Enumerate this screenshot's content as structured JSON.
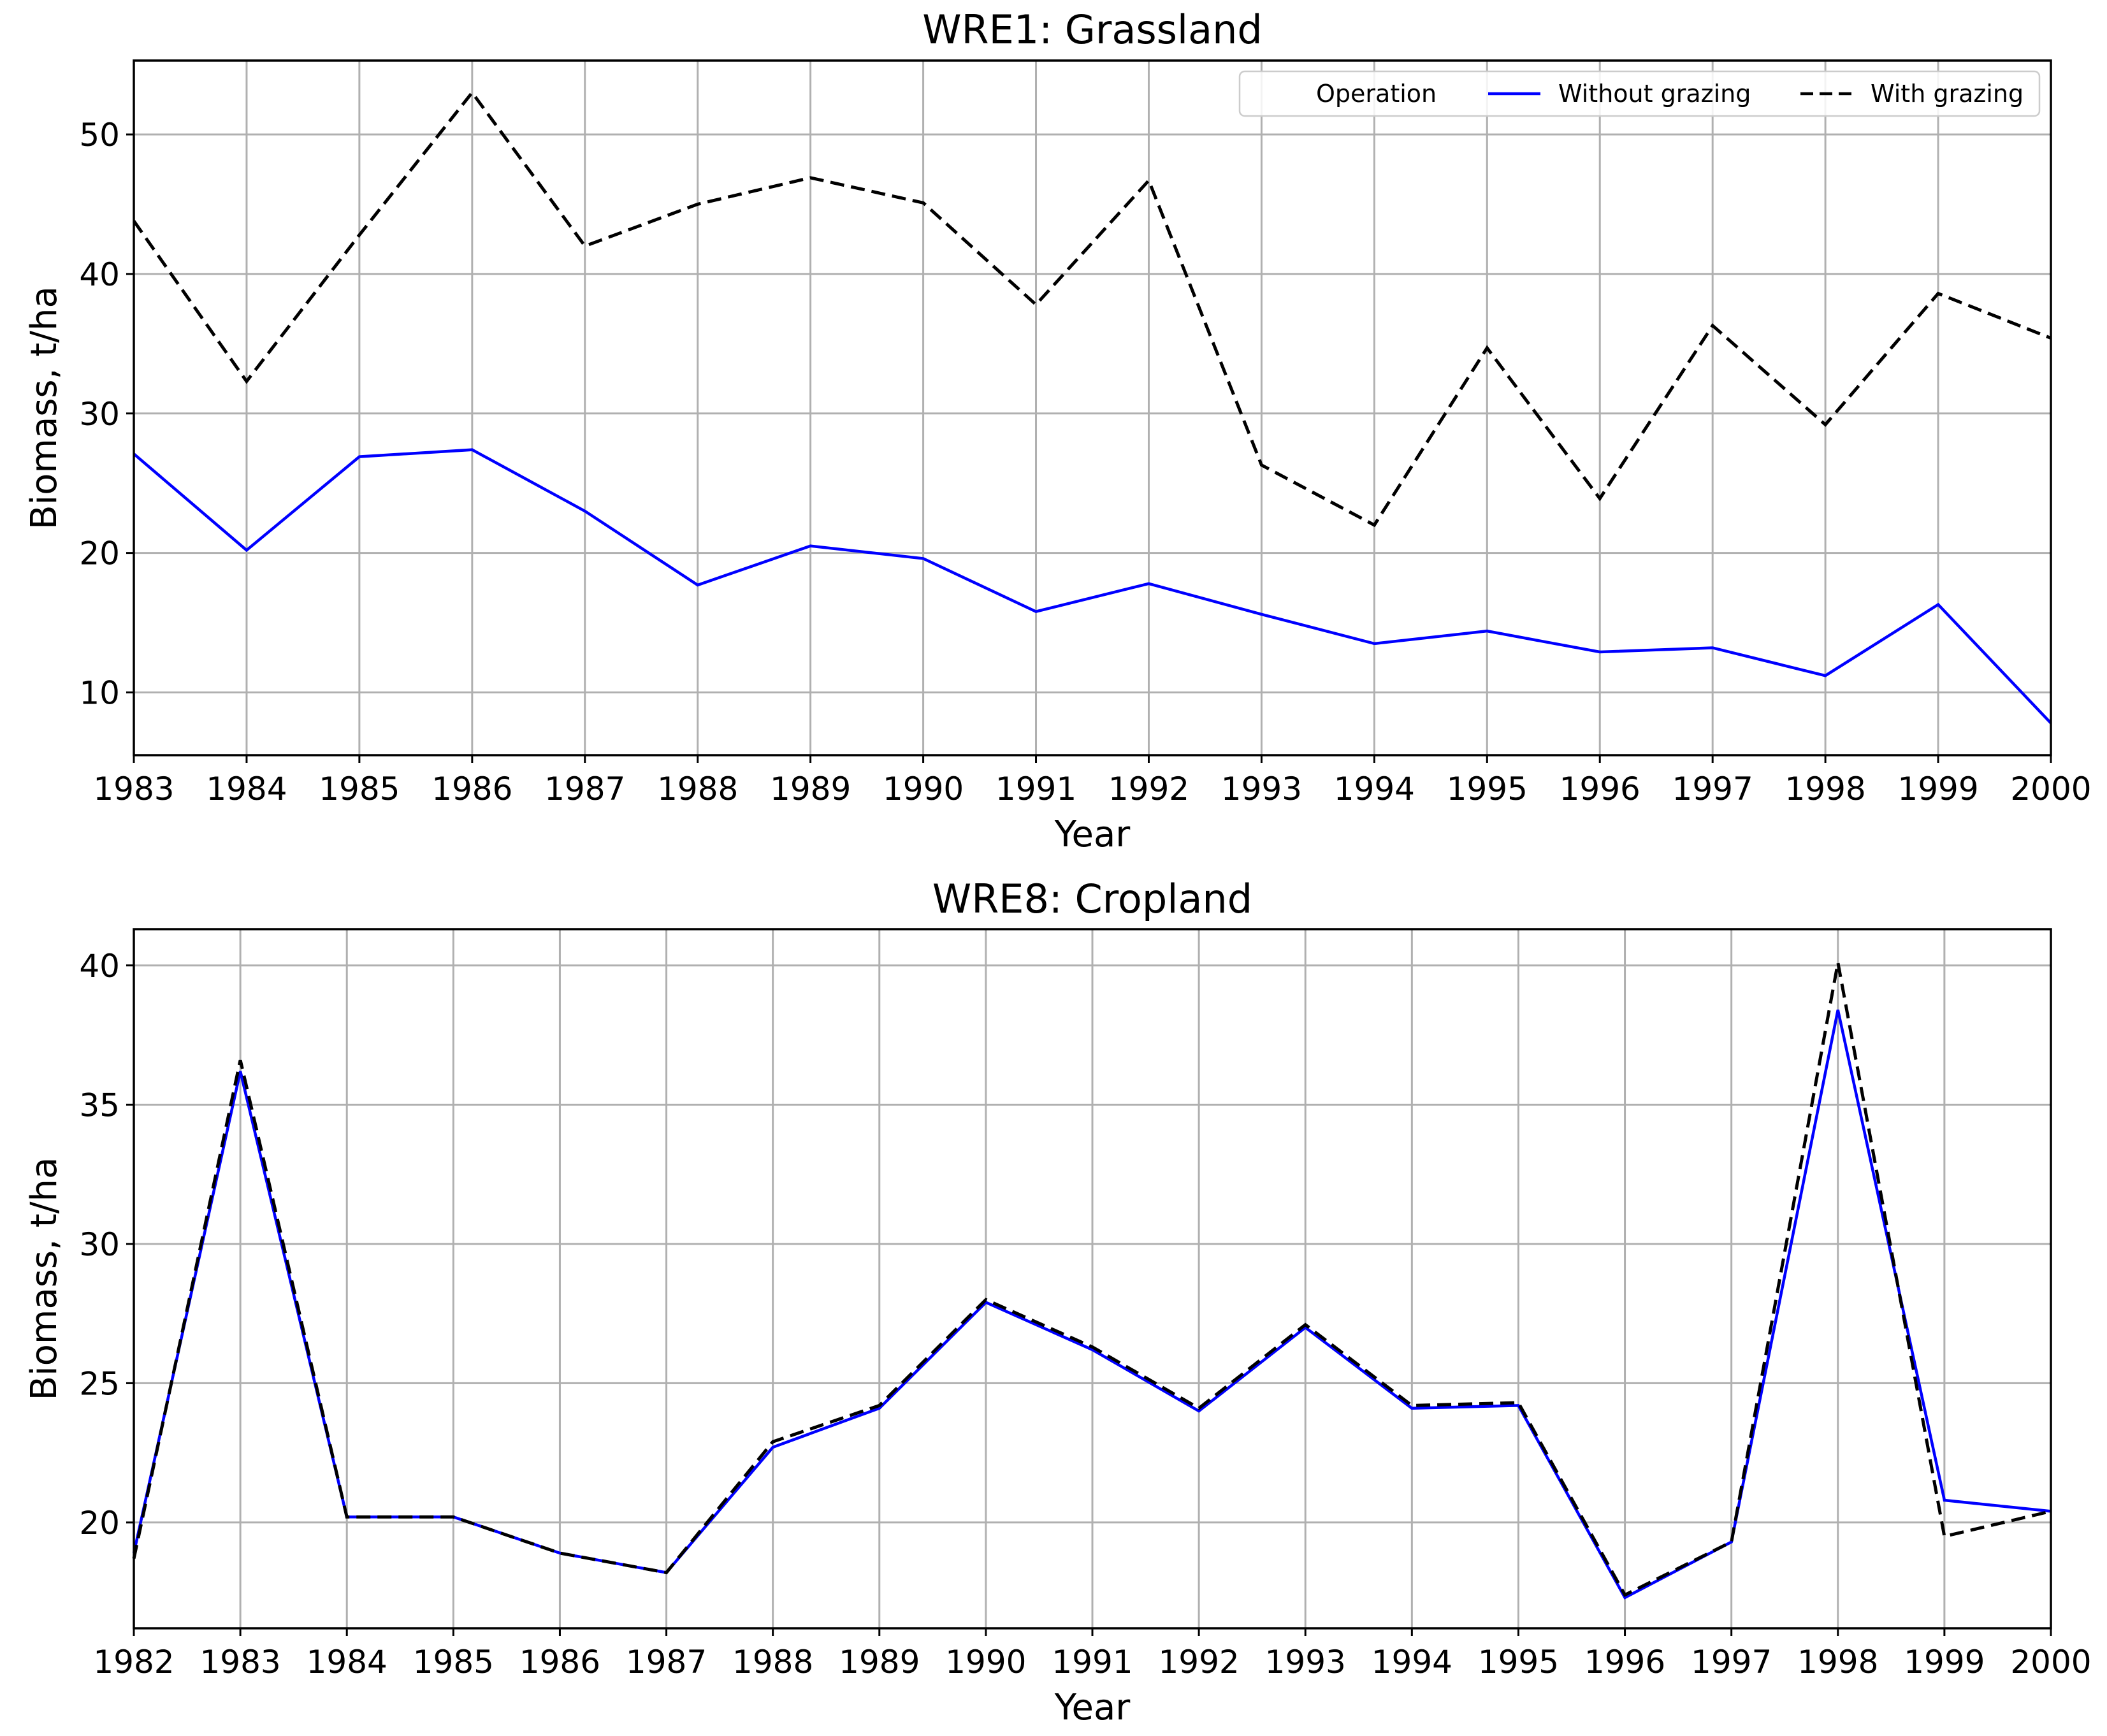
{
  "figure": {
    "background": "#ffffff"
  },
  "legend": {
    "entries": [
      {
        "label": "Operation",
        "color": "#ffffff",
        "style": "none"
      },
      {
        "label": "Without grazing",
        "color": "#0000ff",
        "style": "solid"
      },
      {
        "label": "With grazing",
        "color": "#000000",
        "style": "dashed"
      }
    ]
  },
  "chart_data": [
    {
      "type": "line",
      "title": "WRE1: Grassland",
      "xlabel": "Year",
      "ylabel": "Biomass, t/ha",
      "xlim": [
        1983,
        2000
      ],
      "ylim": [
        5.5,
        55.3
      ],
      "yticks": [
        10,
        20,
        30,
        40,
        50
      ],
      "grid": true,
      "legend_position": "top-right",
      "x": [
        1983,
        1984,
        1985,
        1986,
        1987,
        1988,
        1989,
        1990,
        1991,
        1992,
        1993,
        1994,
        1995,
        1996,
        1997,
        1998,
        1999,
        2000
      ],
      "series": [
        {
          "name": "Without grazing",
          "color": "#0000ff",
          "style": "solid",
          "values": [
            27.1,
            20.2,
            26.9,
            27.4,
            23.0,
            17.7,
            20.5,
            19.6,
            15.8,
            17.8,
            15.6,
            13.5,
            14.4,
            12.9,
            13.2,
            11.2,
            16.3,
            7.8
          ]
        },
        {
          "name": "With grazing",
          "color": "#000000",
          "style": "dashed",
          "values": [
            43.8,
            32.3,
            42.8,
            53.0,
            42.0,
            45.0,
            46.9,
            45.1,
            37.8,
            46.7,
            26.3,
            22.0,
            34.7,
            23.9,
            36.3,
            29.2,
            38.6,
            35.4
          ]
        }
      ]
    },
    {
      "type": "line",
      "title": "WRE8: Cropland",
      "xlabel": "Year",
      "ylabel": "Biomass, t/ha",
      "xlim": [
        1982,
        2000
      ],
      "ylim": [
        16.2,
        41.3
      ],
      "yticks": [
        20,
        25,
        30,
        35,
        40
      ],
      "grid": true,
      "x": [
        1982,
        1983,
        1984,
        1985,
        1986,
        1987,
        1988,
        1989,
        1990,
        1991,
        1992,
        1993,
        1994,
        1995,
        1996,
        1997,
        1998,
        1999,
        2000
      ],
      "series": [
        {
          "name": "Without grazing",
          "color": "#0000ff",
          "style": "solid",
          "values": [
            18.9,
            36.2,
            20.2,
            20.2,
            18.9,
            18.2,
            22.7,
            24.1,
            27.9,
            26.2,
            24.0,
            27.0,
            24.1,
            24.2,
            17.3,
            19.3,
            38.4,
            20.8,
            20.4
          ]
        },
        {
          "name": "With grazing",
          "color": "#000000",
          "style": "dashed",
          "values": [
            18.7,
            36.6,
            20.2,
            20.2,
            18.9,
            18.2,
            22.9,
            24.2,
            28.0,
            26.3,
            24.1,
            27.1,
            24.2,
            24.3,
            17.4,
            19.3,
            40.1,
            19.5,
            20.4
          ]
        }
      ]
    }
  ]
}
